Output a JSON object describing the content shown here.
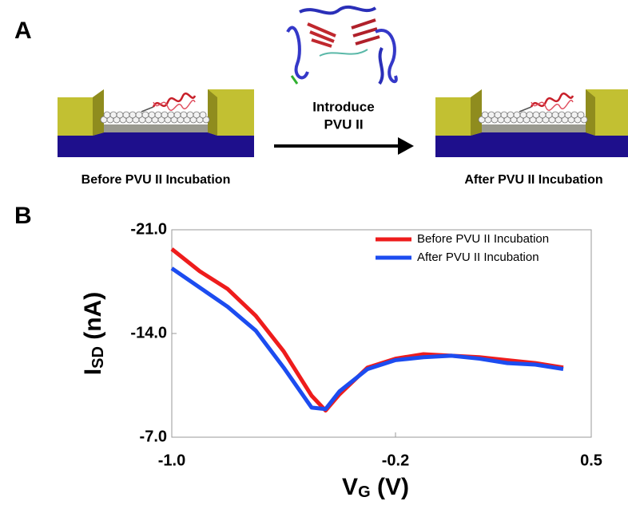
{
  "panel_labels": [
    "A",
    "B"
  ],
  "schematic": {
    "left_caption": "Before PVU II Incubation",
    "arrow_label": [
      "Introduce",
      "PVU II"
    ],
    "right_caption": "After PVU II Incubation"
  },
  "chart_data": {
    "type": "line",
    "xlabel": [
      "V",
      "G",
      " (V)"
    ],
    "ylabel": [
      "I",
      "SD",
      " (nA)"
    ],
    "x": [
      -1.0,
      -0.9,
      -0.8,
      -0.7,
      -0.6,
      -0.5,
      -0.45,
      -0.4,
      -0.3,
      -0.2,
      -0.1,
      0.0,
      0.1,
      0.2,
      0.3,
      0.4
    ],
    "series": [
      {
        "name": "Before PVU II Incubation",
        "color": "#ee1c1c",
        "values": [
          -19.7,
          -18.2,
          -17.0,
          -15.2,
          -12.8,
          -9.8,
          -8.8,
          -9.9,
          -11.7,
          -12.3,
          -12.6,
          -12.5,
          -12.4,
          -12.2,
          -12.0,
          -11.7
        ]
      },
      {
        "name": "After PVU II Incubation",
        "color": "#1c4cf0",
        "values": [
          -18.4,
          -17.1,
          -15.8,
          -14.2,
          -11.7,
          -9.0,
          -8.9,
          -10.1,
          -11.6,
          -12.2,
          -12.4,
          -12.5,
          -12.3,
          -12.0,
          -11.9,
          -11.6
        ]
      }
    ],
    "xlim": [
      -1.0,
      0.5
    ],
    "xticks": [
      {
        "value": -1.0,
        "label": "-1.0"
      },
      -0.2,
      0.5
    ],
    "ylim": [
      -7.0,
      -21.0
    ],
    "yticks": [
      {
        "value": -21.0,
        "label": "-21.0"
      },
      {
        "value": -14.0,
        "label": "-14.0"
      },
      {
        "value": -7.0,
        "label": "-7.0"
      }
    ],
    "legend": "upper right",
    "grid": false
  }
}
